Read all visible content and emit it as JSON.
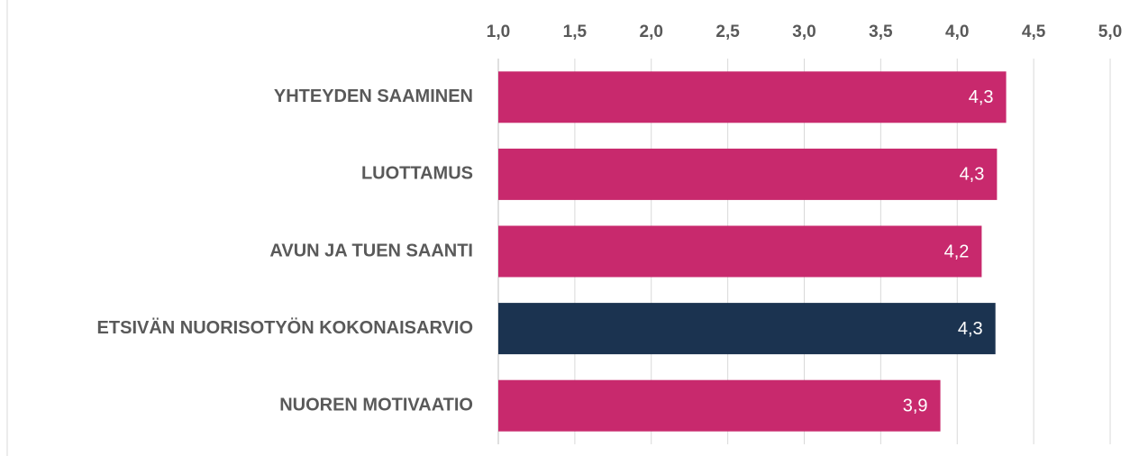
{
  "chart_data": {
    "type": "bar",
    "orientation": "horizontal",
    "categories": [
      "YHTEYDEN SAAMINEN",
      "LUOTTAMUS",
      "AVUN JA TUEN SAANTI",
      "ETSIVÄN NUORISOTYÖN KOKONAISARVIO",
      "NUOREN MOTIVAATIO"
    ],
    "values": [
      4.32,
      4.26,
      4.16,
      4.25,
      3.89
    ],
    "value_labels": [
      "4,3",
      "4,3",
      "4,2",
      "4,3",
      "3,9"
    ],
    "colors": [
      "#c8296d",
      "#c8296d",
      "#c8296d",
      "#1b3350",
      "#c8296d"
    ],
    "xlim": [
      1,
      5
    ],
    "xticks": [
      {
        "value": 1,
        "label": "1,0"
      },
      {
        "value": 1.5,
        "label": "1,5"
      },
      {
        "value": 2,
        "label": "2,0"
      },
      {
        "value": 2.5,
        "label": "2,5"
      },
      {
        "value": 3,
        "label": "3,0"
      },
      {
        "value": 3.5,
        "label": "3,5"
      },
      {
        "value": 4,
        "label": "4,0"
      },
      {
        "value": 4.5,
        "label": "4,5"
      },
      {
        "value": 5,
        "label": "5,0"
      }
    ],
    "grid": true
  }
}
